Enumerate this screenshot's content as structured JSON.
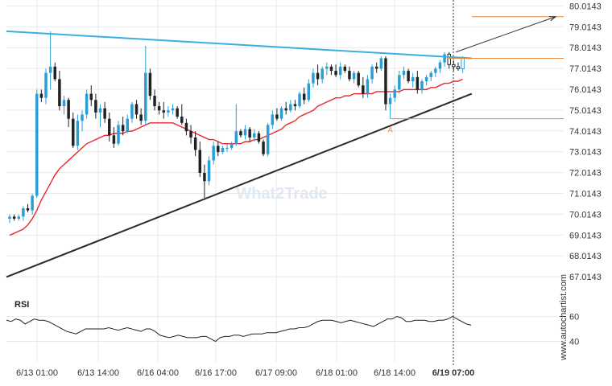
{
  "chart_data": {
    "type": "candlestick",
    "price_axis": {
      "ticks": [
        "80.0143",
        "79.0143",
        "78.0143",
        "77.0143",
        "76.0143",
        "75.0143",
        "74.0143",
        "73.0143",
        "72.0143",
        "71.0143",
        "70.0143",
        "69.0143",
        "68.0143",
        "67.0143"
      ],
      "ylim": [
        66.4,
        80.3
      ]
    },
    "time_axis": {
      "ticks": [
        "6/13 01:00",
        "6/13 14:00",
        "6/16 04:00",
        "6/16 17:00",
        "6/17 09:00",
        "6/18 01:00",
        "6/18 14:00",
        "6/19 07:00"
      ],
      "current": "6/19 07:00"
    },
    "ohlc": [
      [
        69.8,
        70.0,
        69.6,
        69.9
      ],
      [
        69.9,
        70.0,
        69.7,
        69.8
      ],
      [
        69.8,
        70.0,
        69.7,
        69.9
      ],
      [
        69.9,
        70.4,
        69.7,
        70.3
      ],
      [
        70.3,
        70.5,
        70.1,
        70.2
      ],
      [
        70.2,
        71.0,
        70.0,
        70.9
      ],
      [
        70.9,
        76.0,
        70.8,
        75.8
      ],
      [
        75.8,
        76.0,
        75.4,
        75.6
      ],
      [
        75.6,
        77.0,
        75.3,
        76.8
      ],
      [
        76.8,
        78.8,
        76.0,
        77.1
      ],
      [
        77.1,
        77.3,
        76.4,
        76.5
      ],
      [
        76.5,
        76.9,
        75.0,
        75.2
      ],
      [
        75.2,
        75.7,
        74.8,
        75.5
      ],
      [
        75.5,
        75.6,
        74.2,
        74.6
      ],
      [
        74.6,
        74.9,
        73.2,
        73.3
      ],
      [
        73.3,
        74.8,
        73.1,
        74.5
      ],
      [
        74.5,
        75.0,
        74.0,
        74.8
      ],
      [
        74.8,
        76.0,
        74.6,
        75.8
      ],
      [
        75.8,
        76.2,
        75.2,
        75.5
      ],
      [
        75.5,
        75.8,
        74.6,
        74.9
      ],
      [
        74.9,
        75.3,
        74.2,
        75.1
      ],
      [
        75.1,
        75.4,
        74.4,
        74.6
      ],
      [
        74.6,
        74.9,
        73.5,
        73.8
      ],
      [
        73.8,
        74.2,
        73.2,
        73.4
      ],
      [
        73.4,
        74.5,
        73.3,
        74.3
      ],
      [
        74.3,
        74.7,
        73.8,
        74.0
      ],
      [
        74.0,
        74.8,
        73.9,
        74.6
      ],
      [
        74.6,
        75.4,
        74.4,
        75.3
      ],
      [
        75.3,
        75.5,
        74.6,
        74.8
      ],
      [
        74.8,
        75.1,
        74.3,
        74.5
      ],
      [
        74.5,
        78.1,
        74.3,
        76.8
      ],
      [
        76.8,
        77.0,
        75.5,
        75.7
      ],
      [
        75.7,
        76.0,
        75.0,
        75.2
      ],
      [
        75.2,
        75.4,
        74.8,
        75.0
      ],
      [
        75.0,
        75.4,
        74.6,
        74.9
      ],
      [
        74.9,
        75.2,
        74.7,
        75.0
      ],
      [
        75.0,
        75.3,
        74.8,
        75.1
      ],
      [
        75.1,
        75.2,
        74.6,
        74.7
      ],
      [
        74.7,
        75.3,
        74.3,
        74.4
      ],
      [
        74.4,
        74.6,
        73.8,
        74.0
      ],
      [
        74.0,
        74.3,
        73.4,
        73.7
      ],
      [
        73.7,
        74.0,
        72.8,
        73.1
      ],
      [
        73.1,
        73.5,
        71.8,
        72.0
      ],
      [
        72.0,
        72.4,
        70.8,
        71.6
      ],
      [
        71.6,
        72.8,
        71.4,
        72.6
      ],
      [
        72.6,
        73.5,
        72.4,
        73.3
      ],
      [
        73.3,
        73.5,
        72.8,
        73.0
      ],
      [
        73.0,
        73.3,
        72.9,
        73.2
      ],
      [
        73.2,
        73.4,
        73.0,
        73.2
      ],
      [
        73.2,
        73.5,
        73.1,
        73.4
      ],
      [
        73.4,
        75.3,
        73.3,
        74.0
      ],
      [
        74.0,
        74.1,
        73.7,
        73.8
      ],
      [
        73.8,
        74.3,
        73.6,
        74.1
      ],
      [
        74.1,
        74.2,
        73.5,
        73.7
      ],
      [
        73.7,
        74.1,
        73.5,
        73.9
      ],
      [
        73.9,
        74.0,
        73.4,
        73.5
      ],
      [
        73.5,
        73.6,
        72.8,
        72.9
      ],
      [
        72.9,
        74.4,
        72.8,
        74.3
      ],
      [
        74.3,
        75.0,
        74.1,
        74.8
      ],
      [
        74.8,
        75.1,
        74.5,
        74.6
      ],
      [
        74.6,
        75.2,
        74.5,
        75.1
      ],
      [
        75.1,
        75.4,
        74.8,
        75.0
      ],
      [
        75.0,
        75.5,
        74.9,
        75.3
      ],
      [
        75.3,
        75.5,
        75.0,
        75.2
      ],
      [
        75.2,
        75.9,
        75.1,
        75.8
      ],
      [
        75.8,
        76.1,
        75.3,
        75.5
      ],
      [
        75.5,
        76.5,
        75.4,
        76.3
      ],
      [
        76.3,
        77.0,
        76.1,
        76.8
      ],
      [
        76.8,
        77.2,
        76.2,
        76.5
      ],
      [
        76.5,
        77.1,
        76.3,
        77.0
      ],
      [
        77.0,
        77.3,
        76.7,
        77.1
      ],
      [
        77.1,
        77.2,
        76.7,
        76.9
      ],
      [
        76.9,
        77.2,
        76.6,
        76.7
      ],
      [
        76.7,
        77.3,
        76.5,
        77.1
      ],
      [
        77.1,
        77.2,
        76.8,
        76.9
      ],
      [
        76.9,
        77.1,
        76.4,
        76.5
      ],
      [
        76.5,
        76.9,
        76.3,
        76.8
      ],
      [
        76.8,
        76.9,
        76.1,
        76.2
      ],
      [
        76.2,
        76.6,
        75.6,
        75.8
      ],
      [
        75.8,
        76.7,
        75.6,
        76.5
      ],
      [
        76.5,
        77.2,
        76.3,
        77.1
      ],
      [
        77.1,
        77.3,
        76.8,
        77.0
      ],
      [
        77.0,
        77.6,
        76.9,
        77.5
      ],
      [
        77.5,
        77.6,
        75.0,
        75.3
      ],
      [
        75.3,
        75.8,
        74.6,
        75.6
      ],
      [
        75.6,
        76.2,
        75.4,
        76.0
      ],
      [
        76.0,
        76.9,
        75.8,
        76.7
      ],
      [
        76.7,
        77.1,
        76.5,
        76.9
      ],
      [
        76.9,
        77.0,
        76.3,
        76.4
      ],
      [
        76.4,
        76.8,
        76.1,
        76.6
      ],
      [
        76.6,
        76.9,
        75.8,
        76.0
      ],
      [
        76.0,
        76.5,
        75.8,
        76.4
      ],
      [
        76.4,
        76.7,
        76.2,
        76.6
      ],
      [
        76.6,
        76.9,
        76.4,
        76.8
      ],
      [
        76.8,
        77.1,
        76.6,
        77.0
      ],
      [
        77.0,
        77.4,
        76.8,
        77.3
      ],
      [
        77.3,
        77.8,
        77.1,
        77.7
      ],
      [
        77.7,
        77.8,
        77.0,
        77.2
      ],
      [
        77.2,
        77.4,
        76.9,
        77.1
      ],
      [
        77.1,
        77.3,
        76.9,
        77.0
      ],
      [
        77.0,
        77.6,
        76.8,
        77.5
      ]
    ],
    "moving_average": [
      69.0,
      69.1,
      69.2,
      69.3,
      69.5,
      69.8,
      70.2,
      70.7,
      71.1,
      71.5,
      71.9,
      72.2,
      72.4,
      72.6,
      72.8,
      73.0,
      73.2,
      73.4,
      73.5,
      73.6,
      73.7,
      73.8,
      73.8,
      73.9,
      73.9,
      73.9,
      74.0,
      74.0,
      74.1,
      74.2,
      74.3,
      74.4,
      74.4,
      74.4,
      74.4,
      74.4,
      74.4,
      74.3,
      74.2,
      74.1,
      74.0,
      73.9,
      73.8,
      73.7,
      73.6,
      73.6,
      73.5,
      73.4,
      73.4,
      73.4,
      73.4,
      73.4,
      73.5,
      73.5,
      73.6,
      73.6,
      73.7,
      73.8,
      73.9,
      74.0,
      74.1,
      74.3,
      74.4,
      74.5,
      74.7,
      74.8,
      74.9,
      75.0,
      75.2,
      75.3,
      75.4,
      75.5,
      75.6,
      75.6,
      75.7,
      75.7,
      75.8,
      75.8,
      75.8,
      75.8,
      75.8,
      75.9,
      75.9,
      75.9,
      75.9,
      75.9,
      75.9,
      76.0,
      76.0,
      76.0,
      76.0,
      76.0,
      76.0,
      76.1,
      76.1,
      76.2,
      76.3,
      76.3,
      76.4,
      76.4,
      76.5
    ],
    "pattern": {
      "resistance_line": [
        [
          0,
          78.8
        ],
        [
          102,
          77.5
        ]
      ],
      "support_line": [
        [
          0,
          67.0
        ],
        [
          102,
          75.8
        ]
      ],
      "label": "A",
      "label_index": 84,
      "label_value": 74.1,
      "resistance_level": 77.5,
      "support_level": 74.6,
      "forecast_level": 79.5
    },
    "rsi": {
      "label": "RSI",
      "ticks": [
        "60",
        "40"
      ],
      "ylim": [
        30,
        72
      ],
      "values": [
        57,
        56,
        58,
        57,
        54,
        56,
        58,
        57,
        57,
        56,
        54,
        52,
        50,
        48,
        47,
        46,
        48,
        50,
        50,
        50,
        50,
        50,
        51,
        50,
        49,
        50,
        51,
        50,
        49,
        48,
        50,
        50,
        48,
        45,
        44,
        43,
        44,
        45,
        44,
        43,
        43,
        43,
        44,
        44,
        42,
        40,
        43,
        44,
        44,
        45,
        45,
        44,
        45,
        46,
        46,
        46,
        47,
        47,
        47,
        48,
        49,
        50,
        50,
        51,
        51,
        52,
        54,
        56,
        57,
        57,
        57,
        56,
        55,
        56,
        57,
        56,
        55,
        54,
        53,
        52,
        54,
        56,
        58,
        58,
        60,
        59,
        56,
        56,
        57,
        57,
        57,
        56,
        56,
        57,
        57,
        58,
        60,
        58,
        56,
        54,
        53
      ]
    }
  },
  "watermark": "What2Trade",
  "side_credit": "www.autochartist.com",
  "colors": {
    "bull": "#2a9fd6",
    "bear": "#222222",
    "ma": "#e8282b",
    "resistance": "#3aaee0",
    "support": "#2b2b2b",
    "level": "#e58b3a",
    "grid": "#e9e9e9",
    "axis_text": "#333333"
  }
}
